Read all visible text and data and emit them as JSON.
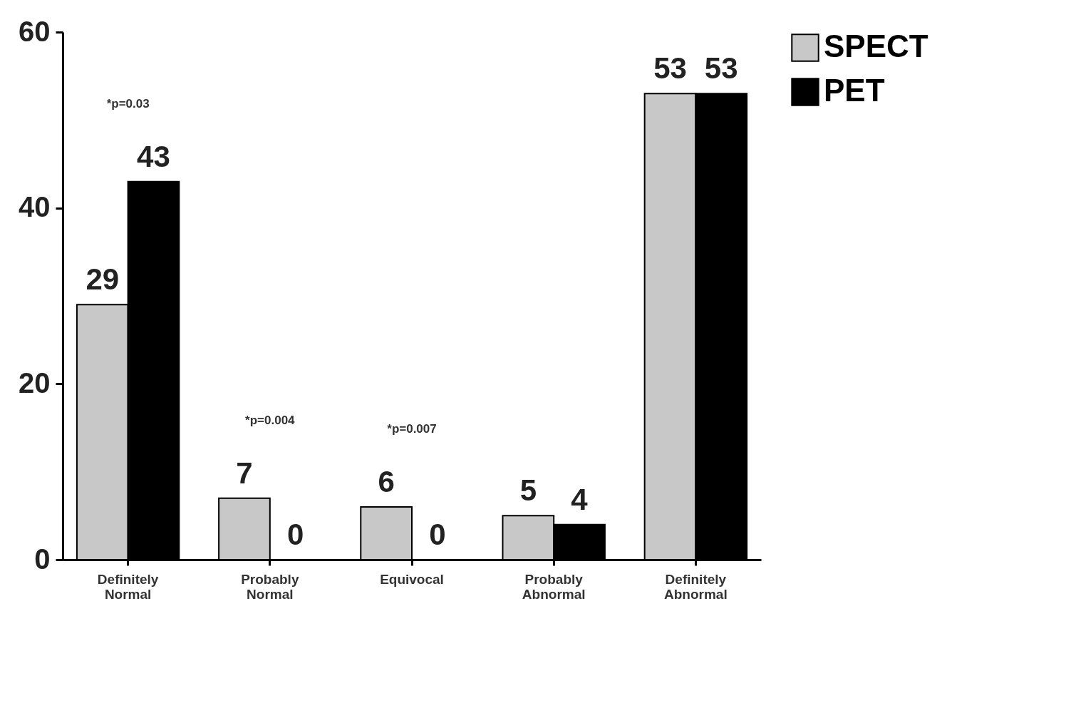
{
  "chart_data": {
    "type": "bar",
    "categories": [
      "Definitely Normal",
      "Probably Normal",
      "Equivocal",
      "Probably Abnormal",
      "Definitely Abnormal"
    ],
    "series": [
      {
        "name": "SPECT",
        "color": "#c8c8c8",
        "values": [
          29,
          7,
          6,
          5,
          53
        ]
      },
      {
        "name": "PET",
        "color": "#000000",
        "values": [
          43,
          0,
          0,
          4,
          53
        ]
      }
    ],
    "ylim": [
      0,
      60
    ],
    "yticks": [
      0,
      20,
      40,
      60
    ],
    "grid": false,
    "legend": "right",
    "data_labels": true,
    "annotations": [
      "*p=0.03",
      "*p=0.004",
      "*p=0.007"
    ]
  }
}
